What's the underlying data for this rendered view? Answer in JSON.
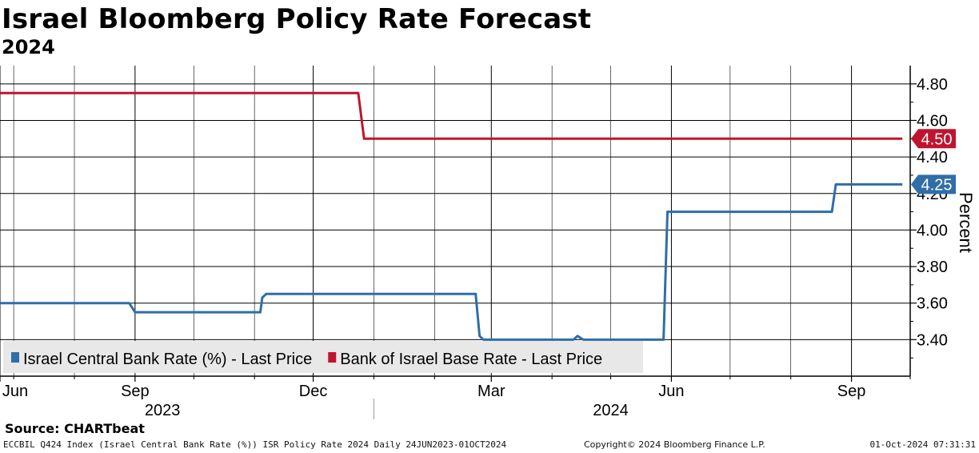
{
  "title": "Israel Bloomberg Policy Rate Forecast",
  "subtitle": "2024",
  "source": "Source: CHARTbeat",
  "footer": {
    "left": "ECCBIL Q424 Index (Israel Central Bank Rate (%)) ISR Policy Rate 2024  Daily 24JUN2023-01OCT2024",
    "center": "Copyright© 2024 Bloomberg Finance L.P.",
    "right": "01-Oct-2024 07:31:31"
  },
  "chart_data": {
    "type": "line",
    "ylabel": "Percent",
    "ylim": [
      3.2,
      4.9
    ],
    "grid": true,
    "legend_position": "bottom-left",
    "y_ticks": [
      {
        "value": 3.4,
        "label": "3.40"
      },
      {
        "value": 3.6,
        "label": "3.60"
      },
      {
        "value": 3.8,
        "label": "3.80"
      },
      {
        "value": 4.0,
        "label": "4.00"
      },
      {
        "value": 4.2,
        "label": "4.20"
      },
      {
        "value": 4.4,
        "label": "4.40"
      },
      {
        "value": 4.6,
        "label": "4.60"
      },
      {
        "value": 4.8,
        "label": "4.80"
      }
    ],
    "x_range": [
      "2023-06-24",
      "2024-10-01"
    ],
    "x_ticks": [
      {
        "date": "2023-06-24",
        "label": "Jun"
      },
      {
        "date": "2023-09-01",
        "label": "Sep"
      },
      {
        "date": "2023-12-01",
        "label": "Dec"
      },
      {
        "date": "2024-03-01",
        "label": "Mar"
      },
      {
        "date": "2024-06-01",
        "label": "Jun"
      },
      {
        "date": "2024-09-01",
        "label": "Sep"
      }
    ],
    "x_minor": [
      "2023-07-01",
      "2023-08-01",
      "2023-10-01",
      "2023-11-01",
      "2024-01-01",
      "2024-02-01",
      "2024-04-01",
      "2024-05-01",
      "2024-07-01",
      "2024-08-01",
      "2024-10-01"
    ],
    "year_labels": [
      {
        "label": "2023",
        "date": "2023-09-15"
      },
      {
        "label": "2024",
        "date": "2024-05-01"
      }
    ],
    "year_divider": "2024-01-01",
    "series": [
      {
        "name": "Israel Central Bank Rate (%) - Last Price",
        "color": "#2f6ea8",
        "last_label": "4.25",
        "points": [
          [
            "2023-06-24",
            3.6
          ],
          [
            "2023-08-29",
            3.6
          ],
          [
            "2023-09-01",
            3.55
          ],
          [
            "2023-11-04",
            3.55
          ],
          [
            "2023-11-05",
            3.63
          ],
          [
            "2023-11-07",
            3.65
          ],
          [
            "2024-02-22",
            3.65
          ],
          [
            "2024-02-24",
            3.42
          ],
          [
            "2024-02-26",
            3.4
          ],
          [
            "2024-04-12",
            3.4
          ],
          [
            "2024-04-14",
            3.42
          ],
          [
            "2024-04-17",
            3.4
          ],
          [
            "2024-05-28",
            3.4
          ],
          [
            "2024-05-30",
            4.1
          ],
          [
            "2024-08-22",
            4.1
          ],
          [
            "2024-08-24",
            4.25
          ],
          [
            "2024-09-27",
            4.25
          ]
        ]
      },
      {
        "name": "Bank of Israel Base Rate - Last Price",
        "color": "#c0142e",
        "last_label": "4.50",
        "points": [
          [
            "2023-06-24",
            4.75
          ],
          [
            "2023-12-24",
            4.75
          ],
          [
            "2023-12-27",
            4.5
          ],
          [
            "2024-09-27",
            4.5
          ]
        ]
      }
    ]
  }
}
